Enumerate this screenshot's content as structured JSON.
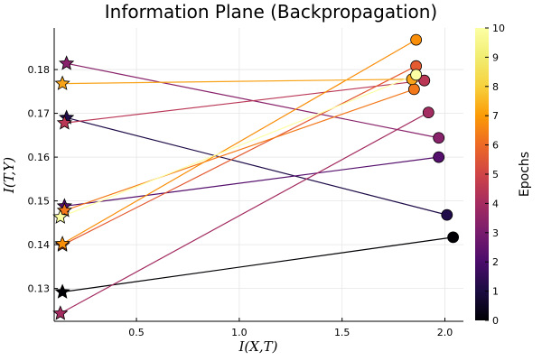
{
  "chart_data": {
    "type": "scatter",
    "title": "Information Plane (Backpropagation)",
    "xlabel": "I(X,T)",
    "ylabel": "I(T,Y)",
    "xlim": [
      0.1,
      2.09
    ],
    "ylim": [
      0.1225,
      0.1895
    ],
    "xticks": [
      0.5,
      1.0,
      1.5,
      2.0
    ],
    "xtick_labels": [
      "0.5",
      "1.0",
      "1.5",
      "2.0"
    ],
    "yticks": [
      0.13,
      0.14,
      0.15,
      0.16,
      0.17,
      0.18
    ],
    "ytick_labels": [
      "0.13",
      "0.14",
      "0.15",
      "0.16",
      "0.17",
      "0.18"
    ],
    "grid": true,
    "colorbar": {
      "label": "Epochs",
      "min": 0,
      "max": 10,
      "ticks": [
        0,
        1,
        2,
        3,
        4,
        5,
        6,
        7,
        8,
        9,
        10
      ],
      "tick_labels": [
        "0",
        "1",
        "2",
        "3",
        "4",
        "5",
        "6",
        "7",
        "8",
        "9",
        "10"
      ],
      "colormap": "inferno"
    },
    "series": [
      {
        "epoch": 0,
        "color": "#000004",
        "start": [
          0.14,
          0.1292
        ],
        "end": [
          2.04,
          0.1417
        ]
      },
      {
        "epoch": 1,
        "color": "#1f0c48",
        "start": [
          0.16,
          0.169
        ],
        "end": [
          2.01,
          0.1468
        ]
      },
      {
        "epoch": 2,
        "color": "#550f6d",
        "start": [
          0.15,
          0.1488
        ],
        "end": [
          1.97,
          0.16
        ]
      },
      {
        "epoch": 3,
        "color": "#88226a",
        "start": [
          0.16,
          0.1814
        ],
        "end": [
          1.97,
          0.1644
        ]
      },
      {
        "epoch": 4,
        "color": "#a32c61",
        "start": [
          0.13,
          0.1243
        ],
        "end": [
          1.92,
          0.1702
        ]
      },
      {
        "epoch": 5,
        "color": "#ba3655",
        "start": [
          0.15,
          0.1678
        ],
        "end": [
          1.9,
          0.1775
        ]
      },
      {
        "epoch": 6,
        "color": "#e45a31",
        "start": [
          0.14,
          0.1399
        ],
        "end": [
          1.86,
          0.1808
        ]
      },
      {
        "epoch": 7,
        "color": "#f37819",
        "start": [
          0.15,
          0.1478
        ],
        "end": [
          1.85,
          0.1755
        ]
      },
      {
        "epoch": 8,
        "color": "#f98e09",
        "start": [
          0.14,
          0.1402
        ],
        "end": [
          1.86,
          0.1868
        ]
      },
      {
        "epoch": 9,
        "color": "#f7a41b",
        "start": [
          0.14,
          0.1768
        ],
        "end": [
          1.84,
          0.1778
        ]
      },
      {
        "epoch": 10,
        "color": "#fcffa4",
        "start": [
          0.13,
          0.1463
        ],
        "end": [
          1.86,
          0.1788
        ]
      }
    ]
  }
}
